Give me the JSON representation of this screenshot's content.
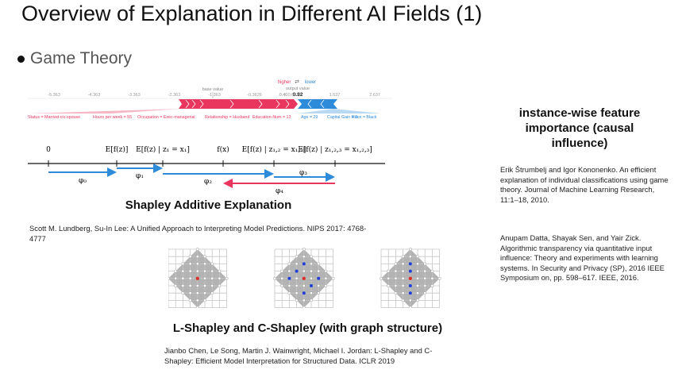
{
  "slide": {
    "title": "Overview of Explanation in Different AI Fields (1)",
    "bullet": "Game Theory"
  },
  "force_plot": {
    "legend_higher": "higher",
    "legend_arrow": "⇄",
    "legend_lower": "lower",
    "output_value_label": "output value",
    "output_value_prefix": "0.40",
    "output_value": "0.82",
    "base_value_label": "base value",
    "ticks": [
      "-5.363",
      "-4.363",
      "-3.363",
      "-2.363",
      "-1.363",
      "-0.3626",
      "0.6374",
      "1.637",
      "2.637"
    ],
    "features_red": [
      "Status = Married-civ-spouse",
      "Hours per week = 55",
      "Occupation = Exec-managerial",
      "Relationship = Husband",
      "Education-Num = 13"
    ],
    "features_blue": [
      "Age = 29",
      "Capital Gain = 0",
      "Race = Black"
    ],
    "red_color": "#e8365f",
    "blue_color": "#2d8bda"
  },
  "shap_diagram": {
    "labels_top": [
      "0",
      "E[f(z)]",
      "E[f(z) | z₁ = x₁]",
      "f(x)",
      "E[f(z) | z₁,₂ = x₁,₂]",
      "E[f(z) | z₁,₂,₃ = x₁,₂,₃]"
    ],
    "phi_labels": [
      "φ₀",
      "φ₁",
      "φ₂",
      "φ₃",
      "φ₄"
    ]
  },
  "shap_caption": "Shapley Additive Explanation",
  "lundberg_ref": "Scott M. Lundberg, Su-In Lee: A Unified Approach to Interpreting Model Predictions. NIPS 2017: 4768-4777",
  "lshapley_caption": "L-Shapley and C-Shapley (with graph structure)",
  "chen_ref": "Jianbo Chen, Le Song, Martin J. Wainwright, Michael I. Jordan: L-Shapley and C-Shapley: Efficient Model Interpretation for Structured Data. ICLR 2019",
  "right_heading": "instance-wise feature importance (causal influence)",
  "strumbelj_ref": "Erik Štrumbelj and Igor Kononenko. An efficient explanation of individual classifications using game theory. Journal of Machine Learning Research, 11:1–18, 2010.",
  "datta_ref": "Anupam Datta, Shayak Sen, and Yair Zick. Algorithmic transparency via quantitative input influence: Theory and experiments with learning systems. In Security and Privacy (SP), 2016 IEEE Symposium on, pp. 598–617. IEEE, 2016."
}
